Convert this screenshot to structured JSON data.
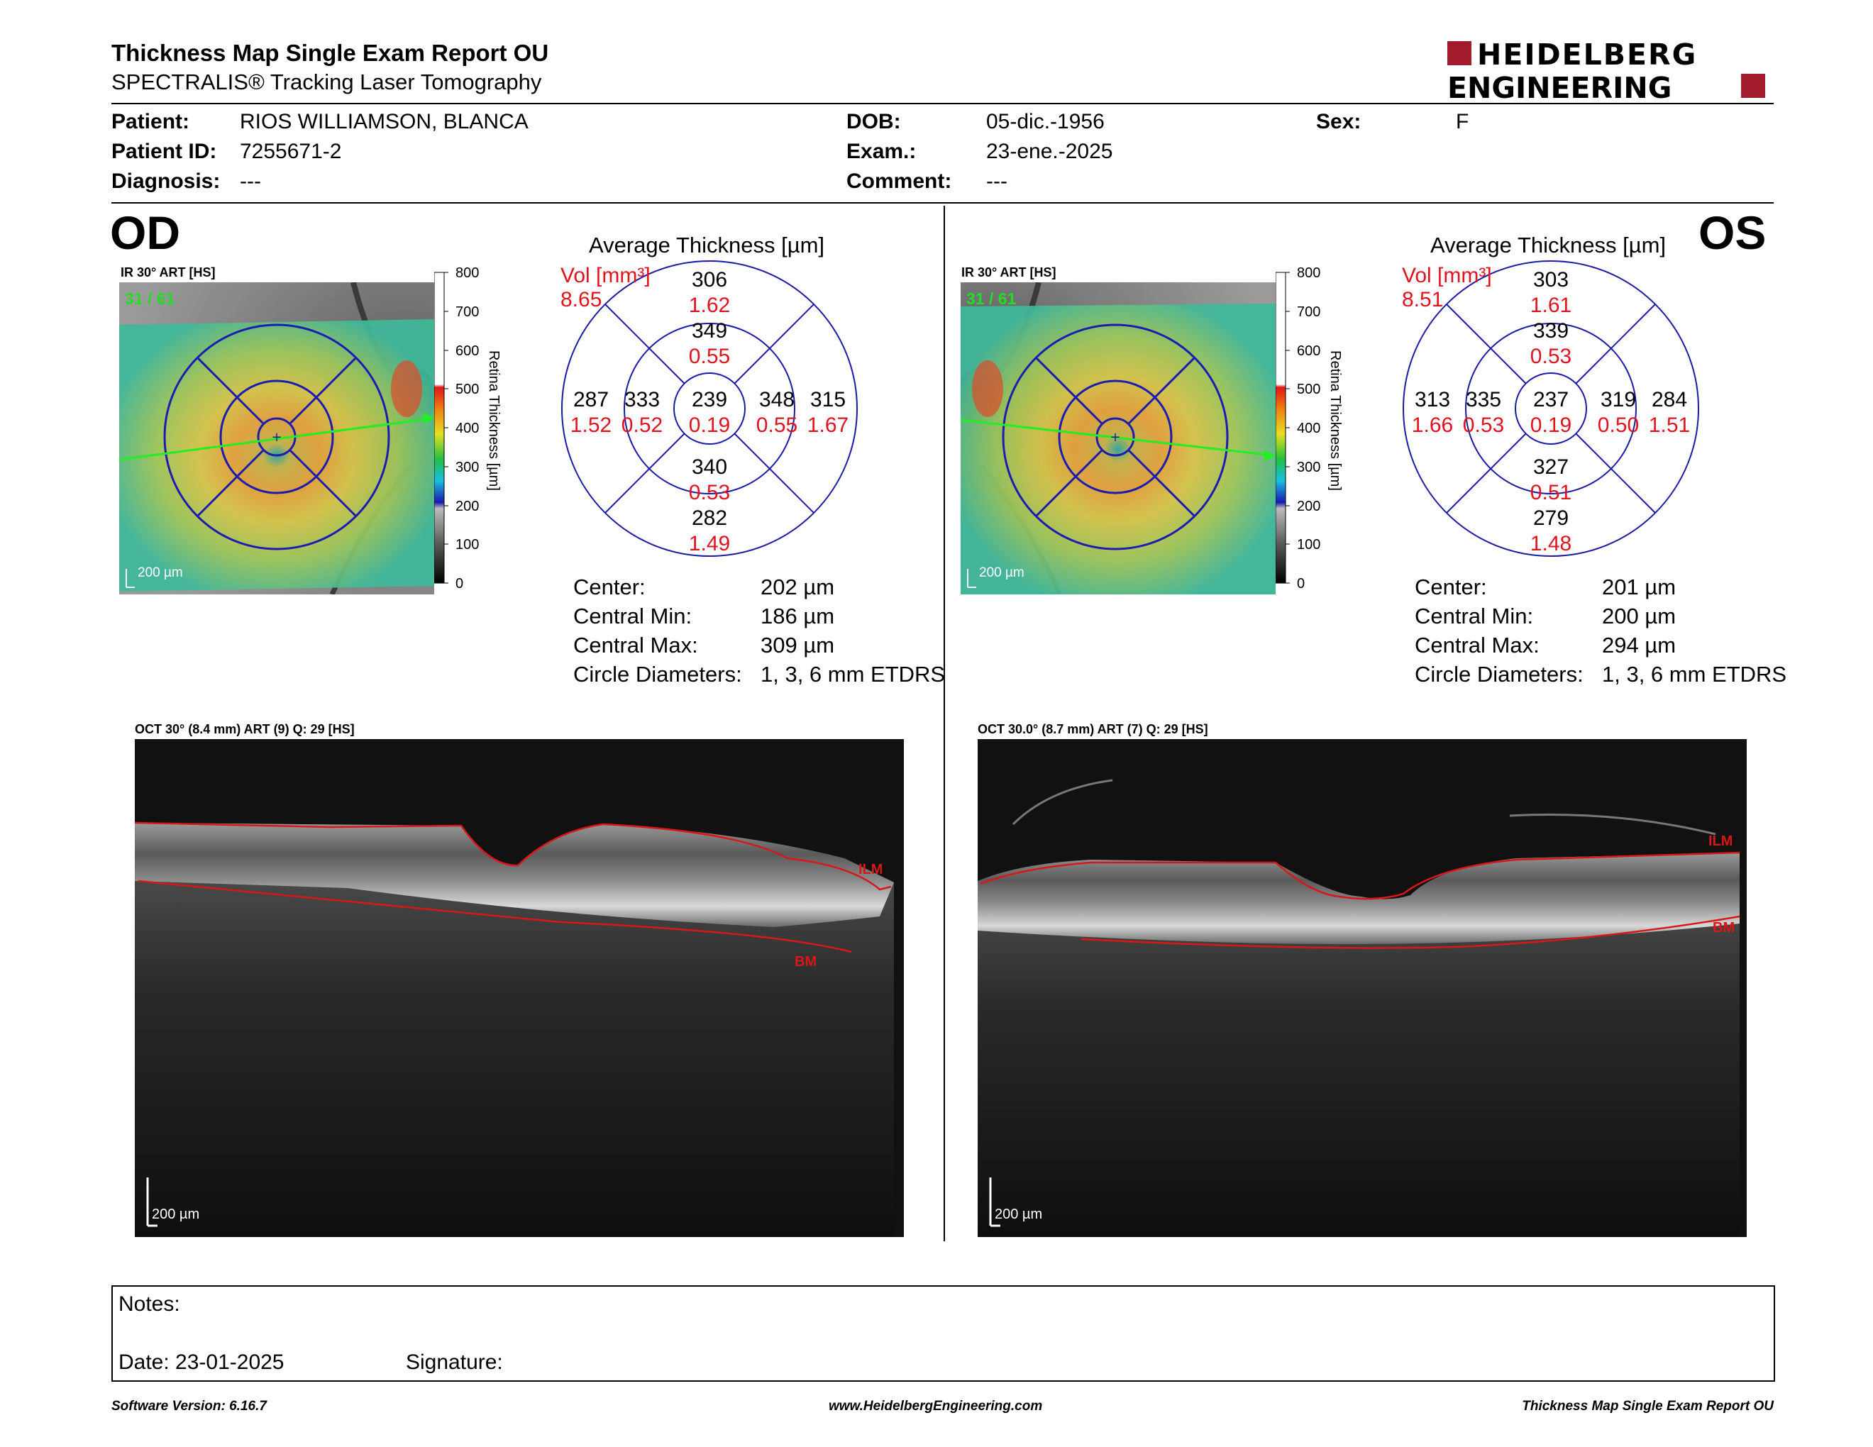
{
  "header": {
    "title": "Thickness Map Single Exam Report OU",
    "subtitle": "SPECTRALIS® Tracking Laser Tomography",
    "logo_line1": "HEIDELBERG",
    "logo_line2": "ENGINEERING",
    "logo_color": "#a31c2e"
  },
  "patient": {
    "patient_label": "Patient:",
    "patient_value": "RIOS WILLIAMSON, BLANCA",
    "id_label": "Patient ID:",
    "id_value": "7255671-2",
    "diagnosis_label": "Diagnosis:",
    "diagnosis_value": "---",
    "dob_label": "DOB:",
    "dob_value": "05-dic.-1956",
    "exam_label": "Exam.:",
    "exam_value": "23-ene.-2025",
    "comment_label": "Comment:",
    "comment_value": "---",
    "sex_label": "Sex:",
    "sex_value": "F"
  },
  "od": {
    "eye": "OD",
    "ir_caption": "IR 30° ART [HS]",
    "frame_count": "31 / 61",
    "scale_label": "200 µm",
    "colorbar_ticks": [
      "800",
      "700",
      "600",
      "500",
      "400",
      "300",
      "200",
      "100",
      "0"
    ],
    "colorbar_title": "Retina Thickness [µm]",
    "avg_title": "Average Thickness [µm]",
    "vol_label": "Vol [mm³]",
    "vol_value": "8.65",
    "etdrs": {
      "outer_sup": "306",
      "outer_sup_vol": "1.62",
      "inner_sup": "349",
      "inner_sup_vol": "0.55",
      "outer_left": "287",
      "outer_left_vol": "1.52",
      "inner_left": "333",
      "inner_left_vol": "0.52",
      "center": "239",
      "center_vol": "0.19",
      "inner_right": "348",
      "inner_right_vol": "0.55",
      "outer_right": "315",
      "outer_right_vol": "1.67",
      "inner_inf": "340",
      "inner_inf_vol": "0.53",
      "outer_inf": "282",
      "outer_inf_vol": "1.49"
    },
    "stats": [
      {
        "label": "Center:",
        "value": "202 µm"
      },
      {
        "label": "Central Min:",
        "value": "186 µm"
      },
      {
        "label": "Central Max:",
        "value": "309 µm"
      },
      {
        "label": "Circle Diameters:",
        "value": "1, 3, 6 mm ETDRS"
      }
    ],
    "oct_caption": "OCT 30° (8.4 mm) ART (9) Q: 29 [HS]",
    "ilm_label": "ILM",
    "bm_label": "BM",
    "oct_scale": "200 µm"
  },
  "os": {
    "eye": "OS",
    "ir_caption": "IR 30° ART [HS]",
    "frame_count": "31 / 61",
    "scale_label": "200 µm",
    "colorbar_ticks": [
      "800",
      "700",
      "600",
      "500",
      "400",
      "300",
      "200",
      "100",
      "0"
    ],
    "colorbar_title": "Retina Thickness [µm]",
    "avg_title": "Average Thickness [µm]",
    "vol_label": "Vol [mm³]",
    "vol_value": "8.51",
    "etdrs": {
      "outer_sup": "303",
      "outer_sup_vol": "1.61",
      "inner_sup": "339",
      "inner_sup_vol": "0.53",
      "outer_left": "313",
      "outer_left_vol": "1.66",
      "inner_left": "335",
      "inner_left_vol": "0.53",
      "center": "237",
      "center_vol": "0.19",
      "inner_right": "319",
      "inner_right_vol": "0.50",
      "outer_right": "284",
      "outer_right_vol": "1.51",
      "inner_inf": "327",
      "inner_inf_vol": "0.51",
      "outer_inf": "279",
      "outer_inf_vol": "1.48"
    },
    "stats": [
      {
        "label": "Center:",
        "value": "201 µm"
      },
      {
        "label": "Central Min:",
        "value": "200 µm"
      },
      {
        "label": "Central Max:",
        "value": "294 µm"
      },
      {
        "label": "Circle Diameters:",
        "value": "1, 3, 6 mm ETDRS"
      }
    ],
    "oct_caption": "OCT 30.0° (8.7 mm) ART (7) Q: 29 [HS]",
    "ilm_label": "ILM",
    "bm_label": "BM",
    "oct_scale": "200 µm"
  },
  "notes": {
    "notes_label": "Notes:",
    "date_label": "Date: 23-01-2025",
    "signature_label": "Signature:"
  },
  "footer": {
    "software": "Software Version: 6.16.7",
    "website": "www.HeidelbergEngineering.com",
    "report_name": "Thickness Map Single Exam Report OU"
  },
  "colors": {
    "vol_red": "#e0141e",
    "etdrs_blue": "#1a1aa6",
    "ilm_red": "#d81818"
  }
}
